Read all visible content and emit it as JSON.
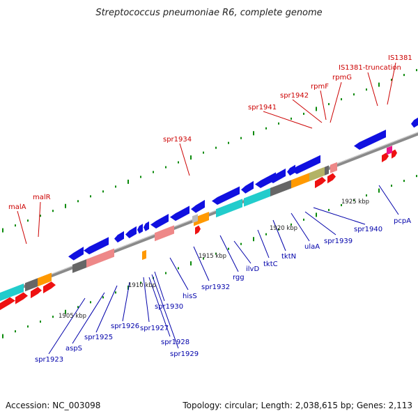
{
  "title": "Streptococcus pneumoniae R6, complete genome",
  "footer": {
    "accession": "Accession: NC_003098",
    "summary": "Topology: circular; Length: 2,038,615 bp; Genes: 2,113"
  },
  "colors": {
    "cds": "#1010e0",
    "rna": "#ee1111",
    "cyan": "#22cccc",
    "orange": "#ff9900",
    "pink": "#ee8888",
    "gray": "#666666",
    "olive": "#b3b366",
    "magenta": "#ee1188",
    "backbone": "#777777",
    "red_label": "#cc0000",
    "blue_label": "#0000aa"
  },
  "scale_labels": [
    "1905 kbp",
    "1910 kbp",
    "1915 kbp",
    "1920 kbp",
    "1925 kbp"
  ],
  "red_labels": [
    "malA",
    "malR",
    "spr1934",
    "spr1941",
    "spr1942",
    "rpmF",
    "rpmG",
    "IS1381-truncation",
    "IS1381"
  ],
  "blue_labels": [
    "spr1923",
    "aspS",
    "spr1925",
    "spr1926",
    "spr1927",
    "spr1928",
    "spr1929",
    "spr1930",
    "hisS",
    "spr1932",
    "rgg",
    "ilvD",
    "tktC",
    "tktN",
    "ulaA",
    "spr1939",
    "spr1940",
    "pcpA"
  ]
}
